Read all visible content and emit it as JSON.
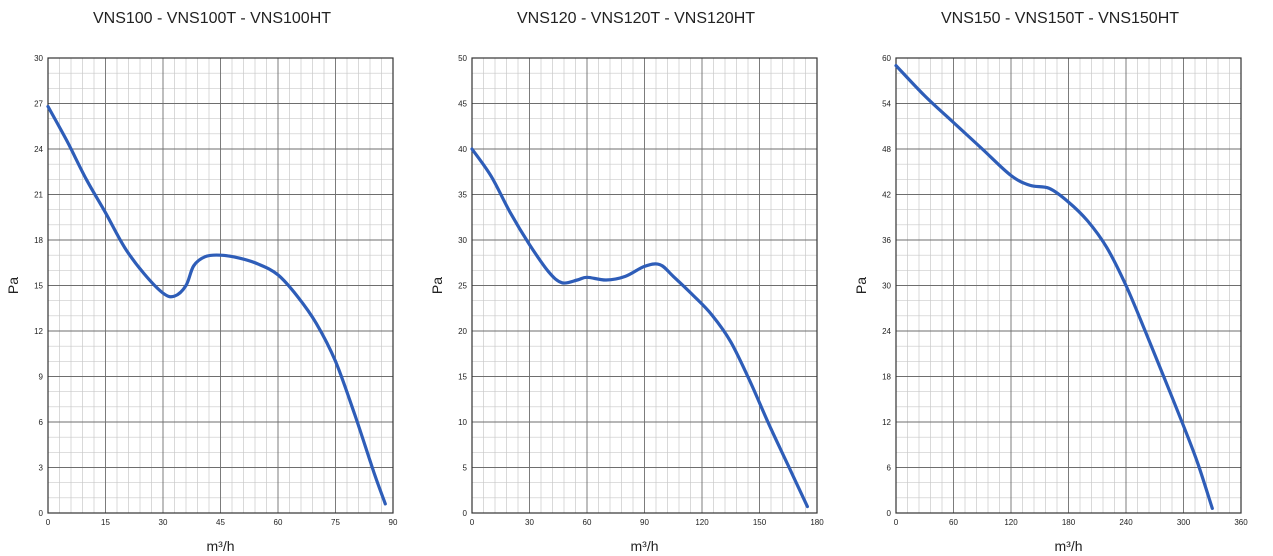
{
  "chart_data": [
    {
      "type": "line",
      "title": "VNS100 - VNS100T - VNS100HT",
      "xlabel": "m³/h",
      "ylabel": "Pa",
      "xlim": [
        0,
        90
      ],
      "ylim": [
        0,
        30
      ],
      "x_ticks": [
        "0",
        "15",
        "30",
        "45",
        "60",
        "75",
        "90"
      ],
      "y_ticks": [
        "0",
        "3",
        "6",
        "9",
        "12",
        "15",
        "18",
        "21",
        "24",
        "27",
        "30"
      ],
      "grid": true,
      "series_color": "#2E5DB8",
      "series": [
        {
          "x": [
            0,
            5,
            10,
            15,
            20,
            25,
            30,
            33,
            36,
            38,
            41,
            45,
            50,
            55,
            60,
            65,
            70,
            75,
            80,
            85,
            88
          ],
          "y": [
            26.8,
            24.5,
            22.0,
            19.8,
            17.5,
            15.8,
            14.5,
            14.3,
            15.0,
            16.3,
            16.9,
            17.0,
            16.8,
            16.4,
            15.7,
            14.3,
            12.5,
            10.0,
            6.5,
            2.7,
            0.6
          ]
        }
      ]
    },
    {
      "type": "line",
      "title": "VNS120 - VNS120T - VNS120HT",
      "xlabel": "m³/h",
      "ylabel": "Pa",
      "xlim": [
        0,
        180
      ],
      "ylim": [
        0,
        50
      ],
      "x_ticks": [
        "0",
        "30",
        "60",
        "90",
        "120",
        "150",
        "180"
      ],
      "y_ticks": [
        "0",
        "5",
        "10",
        "15",
        "20",
        "25",
        "30",
        "35",
        "40",
        "45",
        "50"
      ],
      "grid": true,
      "series_color": "#2E5DB8",
      "series": [
        {
          "x": [
            0,
            10,
            20,
            30,
            40,
            47,
            55,
            60,
            70,
            80,
            90,
            98,
            105,
            115,
            125,
            135,
            145,
            155,
            165,
            175
          ],
          "y": [
            40.0,
            37.0,
            33.0,
            29.5,
            26.5,
            25.3,
            25.6,
            25.9,
            25.6,
            26.0,
            27.1,
            27.3,
            26.0,
            24.0,
            21.8,
            18.8,
            14.5,
            9.7,
            5.2,
            0.7
          ]
        }
      ]
    },
    {
      "type": "line",
      "title": "VNS150 - VNS150T - VNS150HT",
      "xlabel": "m³/h",
      "ylabel": "Pa",
      "xlim": [
        0,
        360
      ],
      "ylim": [
        0,
        60
      ],
      "x_ticks": [
        "0",
        "60",
        "120",
        "180",
        "240",
        "300",
        "360"
      ],
      "y_ticks": [
        "0",
        "6",
        "12",
        "18",
        "24",
        "30",
        "36",
        "42",
        "48",
        "54",
        "60"
      ],
      "grid": true,
      "series_color": "#2E5DB8",
      "series": [
        {
          "x": [
            0,
            30,
            60,
            90,
            120,
            140,
            160,
            180,
            200,
            220,
            240,
            260,
            280,
            300,
            315,
            330
          ],
          "y": [
            59.0,
            55.0,
            51.5,
            48.0,
            44.5,
            43.2,
            42.8,
            41.0,
            38.5,
            35.0,
            30.0,
            24.0,
            17.8,
            11.5,
            6.5,
            0.6
          ]
        }
      ]
    }
  ]
}
